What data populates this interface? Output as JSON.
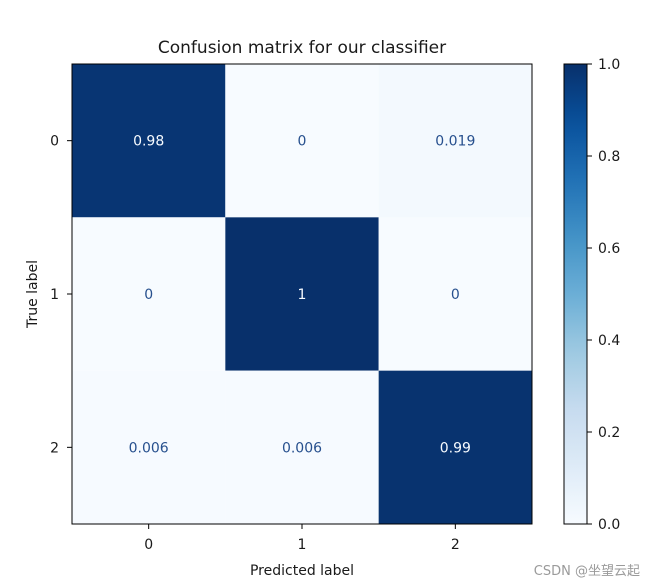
{
  "chart_data": {
    "type": "heatmap",
    "title": "Confusion matrix for our classifier",
    "xlabel": "Predicted label",
    "ylabel": "True label",
    "x_categories": [
      "0",
      "1",
      "2"
    ],
    "y_categories": [
      "0",
      "1",
      "2"
    ],
    "values": [
      [
        0.98,
        0,
        0.019
      ],
      [
        0,
        1,
        0
      ],
      [
        0.006,
        0.006,
        0.99
      ]
    ],
    "cell_labels": [
      [
        "0.98",
        "0",
        "0.019"
      ],
      [
        "0",
        "1",
        "0"
      ],
      [
        "0.006",
        "0.006",
        "0.99"
      ]
    ],
    "colormap": "Blues",
    "colorbar": {
      "range": [
        0.0,
        1.0
      ],
      "ticks": [
        0.0,
        0.2,
        0.4,
        0.6,
        0.8,
        1.0
      ],
      "tick_labels": [
        "0.0",
        "0.2",
        "0.4",
        "0.6",
        "0.8",
        "1.0"
      ]
    },
    "colors": {
      "low": "#f7fbff",
      "high": "#08306b",
      "text_on_dark": "#f7fbff",
      "text_on_light": "#27508e"
    }
  },
  "watermark": "CSDN @坐望云起"
}
